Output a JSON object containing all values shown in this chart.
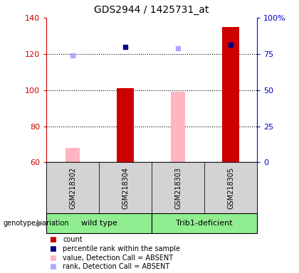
{
  "title": "GDS2944 / 1425731_at",
  "samples": [
    "GSM218302",
    "GSM218304",
    "GSM218303",
    "GSM218305"
  ],
  "x_positions": [
    1,
    2,
    3,
    4
  ],
  "ylim_left": [
    60,
    140
  ],
  "ylim_right": [
    0,
    100
  ],
  "yticks_left": [
    60,
    80,
    100,
    120,
    140
  ],
  "yticks_right": [
    0,
    25,
    50,
    75,
    100
  ],
  "ytick_right_labels": [
    "0",
    "25",
    "50",
    "75",
    "100%"
  ],
  "bar_width": 0.32,
  "red_bars": {
    "GSM218302": null,
    "GSM218304": 101,
    "GSM218303": null,
    "GSM218305": 135
  },
  "pink_bars": {
    "GSM218302": 68,
    "GSM218304": null,
    "GSM218303": 99,
    "GSM218305": null
  },
  "blue_squares": {
    "GSM218302": null,
    "GSM218304": 124,
    "GSM218303": null,
    "GSM218305": 125
  },
  "lightblue_squares": {
    "GSM218302": 119,
    "GSM218304": null,
    "GSM218303": 123,
    "GSM218305": null
  },
  "bar_bottom": 60,
  "sample_box_color": "#D3D3D3",
  "left_axis_color": "#CC0000",
  "right_axis_color": "#0000CC",
  "dotted_lines": [
    80,
    100,
    120
  ],
  "plot_bg_color": "#FFFFFF",
  "fig_bg_color": "#FFFFFF",
  "legend_data": [
    [
      "#CC0000",
      "count"
    ],
    [
      "#00008B",
      "percentile rank within the sample"
    ],
    [
      "#FFB6C1",
      "value, Detection Call = ABSENT"
    ],
    [
      "#AAAAFF",
      "rank, Detection Call = ABSENT"
    ]
  ]
}
